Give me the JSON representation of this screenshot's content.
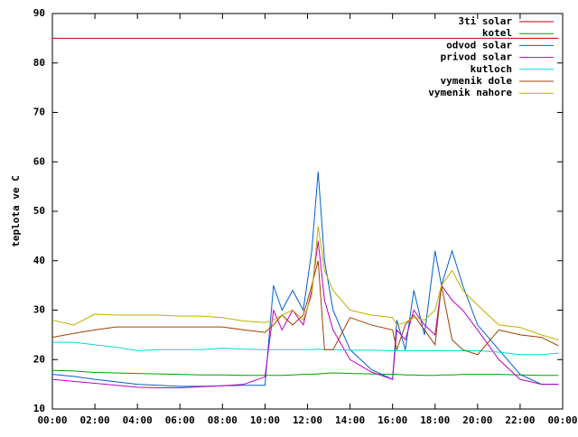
{
  "chart_data": {
    "type": "line",
    "y_label": "teplota ve C",
    "x": [
      0,
      1,
      2,
      3,
      4,
      5,
      6,
      7,
      8,
      9,
      10,
      10.4,
      10.8,
      11.3,
      11.8,
      12.2,
      12.5,
      12.8,
      13.2,
      14,
      15,
      16,
      16.2,
      16.6,
      17,
      17.5,
      18,
      18.3,
      18.8,
      19.3,
      20,
      21,
      22,
      23,
      23.8
    ],
    "xlim": [
      0,
      24
    ],
    "xticks": [
      {
        "value": 0,
        "label": "00:00"
      },
      {
        "value": 2,
        "label": "02:00"
      },
      {
        "value": 4,
        "label": "04:00"
      },
      {
        "value": 6,
        "label": "06:00"
      },
      {
        "value": 8,
        "label": "08:00"
      },
      {
        "value": 10,
        "label": "10:00"
      },
      {
        "value": 12,
        "label": "12:00"
      },
      {
        "value": 14,
        "label": "14:00"
      },
      {
        "value": 16,
        "label": "16:00"
      },
      {
        "value": 18,
        "label": "18:00"
      },
      {
        "value": 20,
        "label": "20:00"
      },
      {
        "value": 22,
        "label": "22:00"
      },
      {
        "value": 24,
        "label": "00:00"
      }
    ],
    "ylim": [
      10,
      90
    ],
    "yticks": [
      10,
      20,
      30,
      40,
      50,
      60,
      70,
      80,
      90
    ],
    "legend": "top-right",
    "series": [
      {
        "name": "3ti solar",
        "color": "#c00000",
        "values": [
          85,
          85,
          85,
          85,
          85,
          85,
          85,
          85,
          85,
          85,
          85,
          85,
          85,
          85,
          85,
          85,
          85,
          85,
          85,
          85,
          85,
          85,
          85,
          85,
          85,
          85,
          85,
          85,
          85,
          85,
          85,
          85,
          85,
          85,
          85
        ]
      },
      {
        "name": "kotel",
        "color": "#00a000",
        "values": [
          17.8,
          17.7,
          17.4,
          17.3,
          17.2,
          17.1,
          17,
          16.9,
          16.9,
          16.8,
          16.8,
          16.8,
          16.8,
          16.9,
          17,
          17,
          17.1,
          17.2,
          17.3,
          17.2,
          17.1,
          17,
          17,
          16.9,
          16.9,
          16.8,
          16.8,
          16.9,
          16.9,
          17,
          17,
          17,
          16.9,
          16.8,
          16.8
        ]
      },
      {
        "name": "odvod solar",
        "color": "#0060d0",
        "values": [
          17,
          16.6,
          16,
          15.5,
          15,
          14.8,
          14.6,
          14.6,
          14.7,
          14.8,
          14.8,
          35,
          30,
          34,
          30,
          42,
          58,
          40,
          30,
          22,
          18,
          16,
          28,
          22,
          34,
          25,
          42,
          35,
          42,
          35,
          27,
          22,
          17,
          15,
          15
        ]
      },
      {
        "name": "privod solar",
        "color": "#c000c0",
        "values": [
          16,
          15.6,
          15.2,
          14.8,
          14.4,
          14.3,
          14.3,
          14.5,
          14.7,
          15,
          16.5,
          30,
          26,
          30,
          27,
          34,
          44,
          32,
          26,
          20,
          17.5,
          16,
          26,
          24,
          30,
          27,
          25,
          35,
          32,
          30,
          26,
          20,
          16,
          15,
          15
        ]
      },
      {
        "name": "kutloch",
        "color": "#00d8d8",
        "values": [
          23.5,
          23.5,
          23,
          22.5,
          21.8,
          22,
          22,
          22,
          22.3,
          22.1,
          22,
          22,
          22,
          22,
          22,
          22,
          22.1,
          22,
          22,
          21.9,
          21.9,
          21.8,
          21.8,
          21.8,
          21.8,
          21.8,
          21.8,
          21.8,
          21.8,
          21.8,
          21.8,
          21.5,
          21,
          21,
          21.3
        ]
      },
      {
        "name": "vymenik dole",
        "color": "#a04000",
        "values": [
          24.5,
          25.3,
          26,
          26.6,
          26.6,
          26.6,
          26.6,
          26.6,
          26.6,
          26,
          25.5,
          27,
          29,
          27,
          29,
          35,
          40,
          22,
          22,
          28.5,
          27,
          26,
          22,
          27,
          29,
          26,
          23,
          35,
          24,
          22,
          21,
          26,
          25,
          24.5,
          22.8
        ]
      },
      {
        "name": "vymenik nahore",
        "color": "#c0b000",
        "values": [
          28,
          27,
          29.2,
          29,
          29,
          29,
          28.8,
          28.8,
          28.5,
          27.8,
          27.5,
          28,
          29,
          30,
          28,
          33,
          47,
          38,
          34,
          30,
          29,
          28.5,
          27,
          27.5,
          28.5,
          28,
          30,
          35,
          38,
          34,
          31,
          27,
          26.5,
          25,
          24
        ]
      }
    ]
  }
}
